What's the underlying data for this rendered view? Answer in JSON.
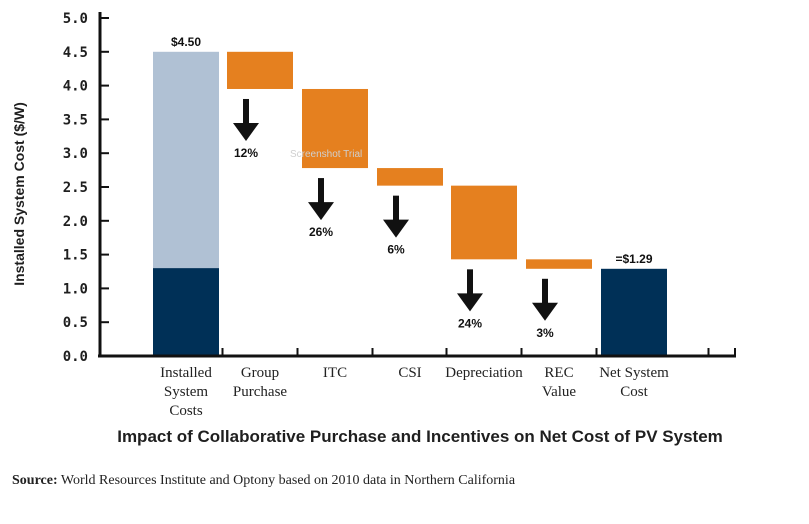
{
  "chart_data": {
    "type": "bar",
    "subtype": "waterfall",
    "title": "Impact of Collaborative Purchase and Incentives on Net Cost of PV System",
    "ylabel": "Installed System Cost ($/W)",
    "xlabel": "",
    "ylim": [
      0,
      5.0
    ],
    "yticks": [
      "0.0",
      "0.5",
      "1.0",
      "1.5",
      "2.0",
      "2.5",
      "3.0",
      "3.5",
      "4.0",
      "4.5",
      "5.0"
    ],
    "grid": false,
    "bars": [
      {
        "category": [
          "Installed",
          "System",
          "Costs"
        ],
        "kind": "total",
        "start": 0,
        "end": 4.5,
        "net_portion": 1.3,
        "value_label": "$4.50"
      },
      {
        "category": [
          "Group",
          "Purchase"
        ],
        "kind": "decrease",
        "start": 4.5,
        "end": 3.95,
        "percent_label": "12%"
      },
      {
        "category": [
          "ITC"
        ],
        "kind": "decrease",
        "start": 3.95,
        "end": 2.78,
        "percent_label": "26%"
      },
      {
        "category": [
          "CSI"
        ],
        "kind": "decrease",
        "start": 2.78,
        "end": 2.52,
        "percent_label": "6%"
      },
      {
        "category": [
          "Depreciation"
        ],
        "kind": "decrease",
        "start": 2.52,
        "end": 1.43,
        "percent_label": "24%"
      },
      {
        "category": [
          "REC",
          "Value"
        ],
        "kind": "decrease",
        "start": 1.43,
        "end": 1.29,
        "percent_label": "3%"
      },
      {
        "category": [
          "Net System",
          "Cost"
        ],
        "kind": "total",
        "start": 0,
        "end": 1.29,
        "value_label": "=$1.29"
      }
    ],
    "colors": {
      "installed_light": "#b0c1d4",
      "net_dark": "#003057",
      "decrease": "#e5801f",
      "axis": "#111111",
      "arrow": "#111111"
    }
  },
  "source": {
    "label": "Source:",
    "text": " World Resources Institute and Optony based on 2010 data in Northern California"
  },
  "watermark": "Screenshot Trial"
}
